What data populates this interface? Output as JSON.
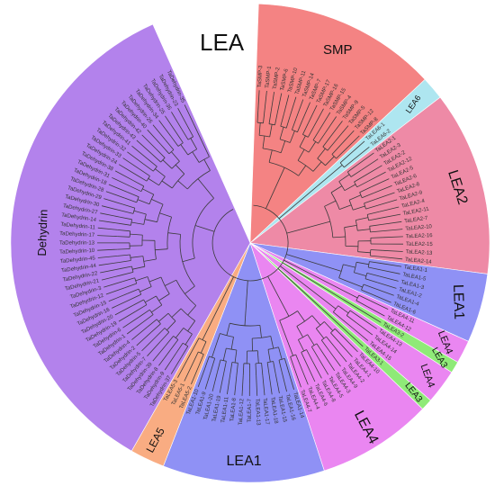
{
  "figure": {
    "title": "LEA",
    "groups": [
      {
        "key": "smp",
        "label": "SMP",
        "color": "#f48383",
        "leaves": [
          "TaSMP-3",
          "TaSMP-1",
          "TaSMP-2",
          "TaSMP-6",
          "TaSMP-10",
          "TaSMP-11",
          "TaSMP-14",
          "TaSMP-7",
          "TaSMP-17",
          "TaSMP-16",
          "TaSMP-15",
          "TaSMP-4",
          "TaSMP-9",
          "TaSMP-5",
          "TaSMP-12",
          "TaSMP-8"
        ]
      },
      {
        "key": "lea6",
        "label": "LEA6",
        "color": "#aee6f0",
        "leaves": [
          "TaLEA6-1",
          "TaLEA6-2"
        ]
      },
      {
        "key": "lea2",
        "label": "LEA2",
        "color": "#ee8aa6",
        "leaves": [
          "TaLEA2-1",
          "TaLEA2-3",
          "TaLEA2-2",
          "TaLEA2-12",
          "TaLEA2-5",
          "TaLEA2-6",
          "TaLEA2-8",
          "TaLEA2-9",
          "TaLEA2-4",
          "TaLEA2-11",
          "TaLEA2-7",
          "TaLEA2-10",
          "TaLEA2-16",
          "TaLEA2-15",
          "TaLEA2-13",
          "TaLEA2-14"
        ]
      },
      {
        "key": "lea1r",
        "label": "LEA1",
        "color": "#8f91f5",
        "leaves": [
          "TaLEA1-1",
          "TaLEA1-5",
          "TaLEA1-3",
          "TaLEA1-2",
          "TaLEA1-4",
          "TaLEA1-6"
        ]
      },
      {
        "key": "lea4a",
        "label": "LEA4",
        "color": "#ea86f1",
        "leaves": [
          "TaLEA4-11",
          "TaLEA4-12"
        ]
      },
      {
        "key": "lea3a",
        "label": "LEA3",
        "color": "#8fea78",
        "leaves": [
          "TaLEA3-2"
        ]
      },
      {
        "key": "lea4b",
        "label": "LEA4",
        "color": "#ea86f1",
        "leaves": [
          "TaLEA4-13",
          "TaLEA4-14",
          "TaLEA4-15"
        ]
      },
      {
        "key": "lea3b",
        "label": "LEA3",
        "color": "#8fea78",
        "leaves": [
          "TaLEA3-1"
        ]
      },
      {
        "key": "lea4c",
        "label": "LEA4",
        "color": "#ea86f1",
        "leaves": [
          "TaLEA4-10",
          "TaLEA4-1",
          "TaLEA4-2",
          "TaLEA4-9",
          "TaLEA4-3",
          "TaLEA4-5",
          "TaLEA4-8",
          "TaLEA4-6",
          "TaLEA4-4",
          "TaLEA4-7"
        ]
      },
      {
        "key": "lea1b",
        "label": "LEA1",
        "color": "#8f91f5",
        "leaves": [
          "TaLEA1-14",
          "TaLEA1-16",
          "TaLEA1-15",
          "TaLEA1-18",
          "TaLEA1-17",
          "TaLEA1-13",
          "TaLEA1-7",
          "TaLEA1-12",
          "TaLEA1-8",
          "TaLEA1-11",
          "TaLEA1-19",
          "TaLEA1-20",
          "TaLEA1-9",
          "TaLEA1-10"
        ]
      },
      {
        "key": "lea5",
        "label": "LEA5",
        "color": "#f9ac82",
        "leaves": [
          "TaLEA5-2",
          "TaLEA5-1",
          "TaLEA5-3"
        ]
      },
      {
        "key": "dehydrin",
        "label": "Dehydrin",
        "color": "#b382ec",
        "leaves": [
          "TaDehydrin-37",
          "TaDehydrin-9",
          "TaDehydrin-8",
          "TaDehydrin-39",
          "TaDehydrin-7",
          "TaDehydrin-5",
          "TaDehydrin-2",
          "TaDehydrin-4",
          "TaDehydrin-1",
          "TaDehydrin-6",
          "TaDehydrin-19",
          "TaDehydrin-20",
          "TaDehydrin-16",
          "TaDehydrin-15",
          "TaDehydrin-12",
          "TaDehydrin-3",
          "TaDehydrin-21",
          "TaDehydrin-22",
          "TaDehydrin-44",
          "TaDehydrin-45",
          "TaDehydrin-10",
          "TaDehydrin-13",
          "TaDehydrin-17",
          "TaDehydrin-11",
          "TaDehydrin-14",
          "TaDehydrin-27",
          "TaDehydrin-30",
          "TaDehydrin-29",
          "TaDehydrin-28",
          "TaDehydrin-18",
          "TaDehydrin-31",
          "TaDehydrin-38",
          "TaDehydrin-24",
          "TaDehydrin-33",
          "TaDehydrin-32",
          "TaDehydrin-41",
          "TaDehydrin-43",
          "TaDehydrin-42",
          "TaDehydrin-40",
          "TaDehydrin-26",
          "TaDehydrin-34",
          "TaDehydrin-25",
          "TaDehydrin-36",
          "TaDehydrin-23",
          "TaDehydrin-35"
        ]
      }
    ]
  }
}
